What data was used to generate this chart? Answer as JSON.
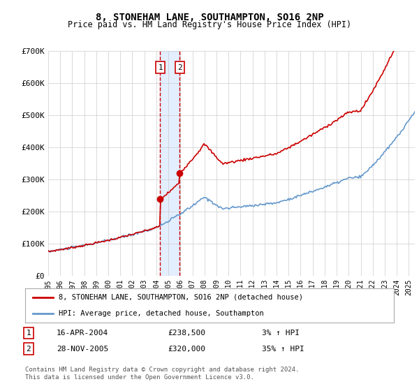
{
  "title": "8, STONEHAM LANE, SOUTHAMPTON, SO16 2NP",
  "subtitle": "Price paid vs. HM Land Registry's House Price Index (HPI)",
  "ylim": [
    0,
    700000
  ],
  "yticks": [
    0,
    100000,
    200000,
    300000,
    400000,
    500000,
    600000,
    700000
  ],
  "ytick_labels": [
    "£0",
    "£100K",
    "£200K",
    "£300K",
    "£400K",
    "£500K",
    "£600K",
    "£700K"
  ],
  "background_color": "#ffffff",
  "grid_color": "#cccccc",
  "sale1": {
    "date_num": 2004.29,
    "price": 238500,
    "label": "1"
  },
  "sale2": {
    "date_num": 2005.91,
    "price": 320000,
    "label": "2"
  },
  "legend_line1": "8, STONEHAM LANE, SOUTHAMPTON, SO16 2NP (detached house)",
  "legend_line2": "HPI: Average price, detached house, Southampton",
  "annotation1": [
    "1",
    "16-APR-2004",
    "£238,500",
    "3% ↑ HPI"
  ],
  "annotation2": [
    "2",
    "28-NOV-2005",
    "£320,000",
    "35% ↑ HPI"
  ],
  "footer": "Contains HM Land Registry data © Crown copyright and database right 2024.\nThis data is licensed under the Open Government Licence v3.0.",
  "line_color_red": "#cc0000",
  "line_color_blue": "#6699cc",
  "shade_color": "#cce0ff",
  "marker_color": "#cc0000",
  "box_color": "#cc0000"
}
